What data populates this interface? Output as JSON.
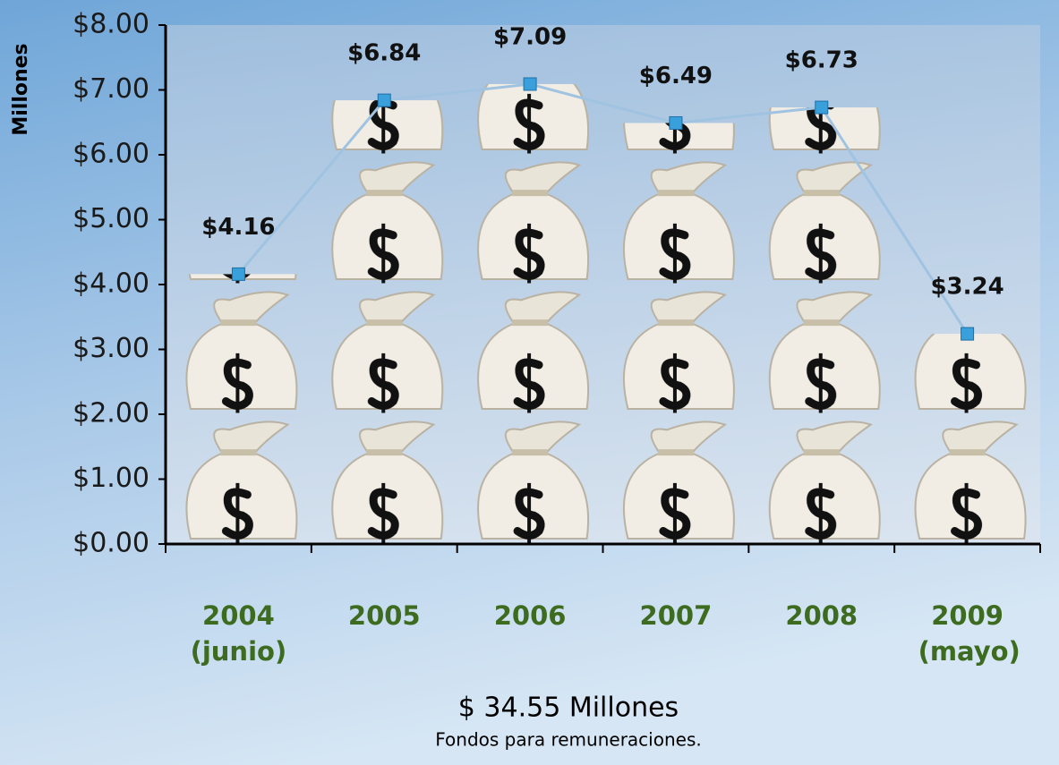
{
  "chart_data": {
    "type": "line",
    "y_label": "Millones",
    "categories": [
      "2004 (junio)",
      "2005",
      "2006",
      "2007",
      "2008",
      "2009 (mayo)"
    ],
    "values": [
      4.16,
      6.84,
      7.09,
      6.49,
      6.73,
      3.24
    ],
    "value_labels": [
      "$4.16",
      "$6.84",
      "$7.09",
      "$6.49",
      "$6.73",
      "$3.24"
    ],
    "color": "#9fc3e0",
    "ylim": [
      0,
      8
    ],
    "yticks": [
      {
        "value": 0,
        "label": "$0.00"
      },
      {
        "value": 1,
        "label": "$1.00"
      },
      {
        "value": 2,
        "label": "$2.00"
      },
      {
        "value": 3,
        "label": "$3.00"
      },
      {
        "value": 4,
        "label": "$4.00"
      },
      {
        "value": 5,
        "label": "$5.00"
      },
      {
        "value": 6,
        "label": "$6.00"
      },
      {
        "value": 7,
        "label": "$7.00"
      },
      {
        "value": 8,
        "label": "$8.00"
      }
    ],
    "grid": true,
    "annotations": [
      "$ 34.55 Millones",
      "Fondos para remuneraciones."
    ]
  }
}
